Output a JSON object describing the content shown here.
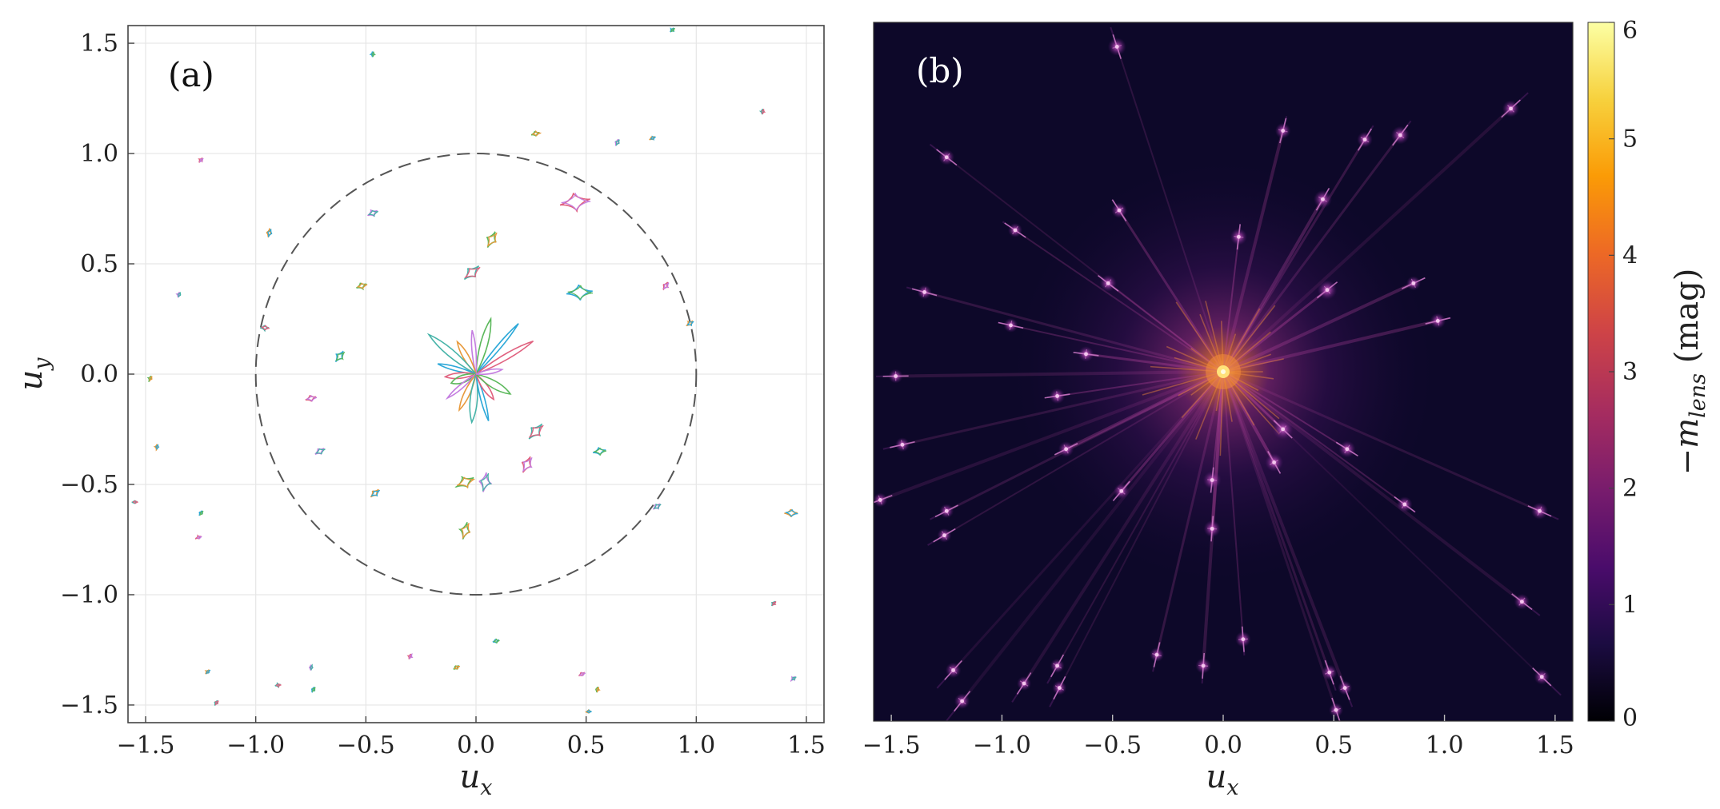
{
  "chart_data": [
    {
      "type": "scatter",
      "panel_label": "(a)",
      "xlabel": "u",
      "xlabel_sub": "x",
      "ylabel": "u",
      "ylabel_sub": "y",
      "xlim": [
        -1.58,
        1.58
      ],
      "ylim": [
        -1.58,
        1.58
      ],
      "xticks": [
        -1.5,
        -1.0,
        -0.5,
        0.0,
        0.5,
        1.0,
        1.5
      ],
      "xtick_labels": [
        "−1.5",
        "−1.0",
        "−0.5",
        "0.0",
        "0.5",
        "1.0",
        "1.5"
      ],
      "yticks": [
        -1.5,
        -1.0,
        -0.5,
        0.0,
        0.5,
        1.0,
        1.5
      ],
      "ytick_labels": [
        "−1.5",
        "−1.0",
        "−0.5",
        "0.0",
        "0.5",
        "1.0",
        "1.5"
      ],
      "grid": true,
      "reference_circle": {
        "center": [
          0,
          0
        ],
        "radius": 1.0,
        "style": "dashed"
      },
      "caustics": [
        {
          "x": -0.47,
          "y": 1.45,
          "size": 0.012
        },
        {
          "x": -1.25,
          "y": 0.97,
          "size": 0.012
        },
        {
          "x": 0.27,
          "y": 1.09,
          "size": 0.02
        },
        {
          "x": 0.64,
          "y": 1.05,
          "size": 0.016
        },
        {
          "x": 0.8,
          "y": 1.07,
          "size": 0.014
        },
        {
          "x": 1.3,
          "y": 1.19,
          "size": 0.012
        },
        {
          "x": 0.89,
          "y": 1.56,
          "size": 0.012
        },
        {
          "x": 0.45,
          "y": 0.78,
          "size": 0.07
        },
        {
          "x": 0.07,
          "y": 0.61,
          "size": 0.04
        },
        {
          "x": -0.47,
          "y": 0.73,
          "size": 0.025
        },
        {
          "x": -0.94,
          "y": 0.64,
          "size": 0.02
        },
        {
          "x": -0.02,
          "y": 0.46,
          "size": 0.045
        },
        {
          "x": 0.47,
          "y": 0.37,
          "size": 0.06
        },
        {
          "x": 0.86,
          "y": 0.4,
          "size": 0.02
        },
        {
          "x": -0.52,
          "y": 0.4,
          "size": 0.025
        },
        {
          "x": -1.35,
          "y": 0.36,
          "size": 0.012
        },
        {
          "x": 0.97,
          "y": 0.23,
          "size": 0.018
        },
        {
          "x": -0.96,
          "y": 0.21,
          "size": 0.02
        },
        {
          "x": -0.62,
          "y": 0.08,
          "size": 0.03
        },
        {
          "x": -0.75,
          "y": -0.11,
          "size": 0.025
        },
        {
          "x": -1.48,
          "y": -0.02,
          "size": 0.012
        },
        {
          "x": -0.71,
          "y": -0.35,
          "size": 0.025
        },
        {
          "x": -1.45,
          "y": -0.33,
          "size": 0.012
        },
        {
          "x": 0.27,
          "y": -0.26,
          "size": 0.045
        },
        {
          "x": 0.56,
          "y": -0.35,
          "size": 0.03
        },
        {
          "x": 0.23,
          "y": -0.41,
          "size": 0.04
        },
        {
          "x": -0.05,
          "y": -0.49,
          "size": 0.045
        },
        {
          "x": 0.04,
          "y": -0.49,
          "size": 0.045
        },
        {
          "x": -0.46,
          "y": -0.54,
          "size": 0.025
        },
        {
          "x": -1.55,
          "y": -0.58,
          "size": 0.012
        },
        {
          "x": -1.25,
          "y": -0.63,
          "size": 0.012
        },
        {
          "x": -1.26,
          "y": -0.74,
          "size": 0.012
        },
        {
          "x": -0.05,
          "y": -0.71,
          "size": 0.04
        },
        {
          "x": 0.82,
          "y": -0.6,
          "size": 0.02
        },
        {
          "x": 1.43,
          "y": -0.63,
          "size": 0.03
        },
        {
          "x": 1.35,
          "y": -1.04,
          "size": 0.012
        },
        {
          "x": 0.09,
          "y": -1.21,
          "size": 0.015
        },
        {
          "x": -0.3,
          "y": -1.28,
          "size": 0.012
        },
        {
          "x": -0.09,
          "y": -1.33,
          "size": 0.015
        },
        {
          "x": -0.75,
          "y": -1.33,
          "size": 0.012
        },
        {
          "x": -1.22,
          "y": -1.35,
          "size": 0.012
        },
        {
          "x": -0.9,
          "y": -1.41,
          "size": 0.012
        },
        {
          "x": -0.74,
          "y": -1.43,
          "size": 0.012
        },
        {
          "x": 0.48,
          "y": -1.36,
          "size": 0.015
        },
        {
          "x": 0.55,
          "y": -1.43,
          "size": 0.012
        },
        {
          "x": 1.44,
          "y": -1.38,
          "size": 0.012
        },
        {
          "x": 0.51,
          "y": -1.53,
          "size": 0.012
        },
        {
          "x": -1.18,
          "y": -1.49,
          "size": 0.012
        }
      ],
      "central_rays": [
        {
          "angle": 50,
          "length": 0.3
        },
        {
          "angle": 30,
          "length": 0.3
        },
        {
          "angle": 75,
          "length": 0.26
        },
        {
          "angle": 95,
          "length": 0.2
        },
        {
          "angle": 120,
          "length": 0.17
        },
        {
          "angle": 140,
          "length": 0.28
        },
        {
          "angle": 165,
          "length": 0.18
        },
        {
          "angle": 185,
          "length": 0.14
        },
        {
          "angle": 200,
          "length": 0.12
        },
        {
          "angle": 220,
          "length": 0.17
        },
        {
          "angle": 245,
          "length": 0.18
        },
        {
          "angle": 265,
          "length": 0.22
        },
        {
          "angle": 285,
          "length": 0.22
        },
        {
          "angle": 305,
          "length": 0.14
        },
        {
          "angle": 330,
          "length": 0.18
        },
        {
          "angle": 10,
          "length": 0.12
        }
      ]
    },
    {
      "type": "heatmap",
      "panel_label": "(b)",
      "xlabel": "u",
      "xlabel_sub": "x",
      "xlim": [
        -1.58,
        1.58
      ],
      "ylim": [
        -1.58,
        1.58
      ],
      "xticks": [
        -1.5,
        -1.0,
        -0.5,
        0.0,
        0.5,
        1.0,
        1.5
      ],
      "xtick_labels": [
        "−1.5",
        "−1.0",
        "−0.5",
        "0.0",
        "0.5",
        "1.0",
        "1.5"
      ],
      "colorbar_label_prefix": "−m",
      "colorbar_label_sub": "lens",
      "colorbar_label_suffix": " (mag)",
      "colorbar_range": [
        0,
        6
      ],
      "colorbar_ticks": [
        0,
        1,
        2,
        3,
        4,
        5,
        6
      ],
      "colorbar_tick_labels": [
        "0",
        "1",
        "2",
        "3",
        "4",
        "5",
        "6"
      ],
      "colormap": "plasma-like",
      "central_peak": {
        "x": 0.0,
        "y": 0.0,
        "value": 6
      },
      "bright_spots": [
        {
          "x": -0.48,
          "y": 1.47,
          "value": 1.5
        },
        {
          "x": 0.8,
          "y": 1.07,
          "value": 1.5
        },
        {
          "x": 1.3,
          "y": 1.19,
          "value": 1.4
        },
        {
          "x": -1.25,
          "y": 0.97,
          "value": 1.3
        },
        {
          "x": 0.64,
          "y": 1.05,
          "value": 1.3
        },
        {
          "x": 0.27,
          "y": 1.09,
          "value": 1.3
        },
        {
          "x": -0.94,
          "y": 0.64,
          "value": 1.2
        },
        {
          "x": -0.47,
          "y": 0.73,
          "value": 1.3
        },
        {
          "x": 0.45,
          "y": 0.78,
          "value": 1.5
        },
        {
          "x": 0.07,
          "y": 0.61,
          "value": 1.4
        },
        {
          "x": -1.35,
          "y": 0.36,
          "value": 1.2
        },
        {
          "x": 0.86,
          "y": 0.4,
          "value": 1.2
        },
        {
          "x": -0.52,
          "y": 0.4,
          "value": 1.4
        },
        {
          "x": 0.47,
          "y": 0.37,
          "value": 1.6
        },
        {
          "x": 0.97,
          "y": 0.23,
          "value": 1.3
        },
        {
          "x": -0.96,
          "y": 0.21,
          "value": 1.2
        },
        {
          "x": -0.62,
          "y": 0.08,
          "value": 1.3
        },
        {
          "x": -1.48,
          "y": -0.02,
          "value": 1.2
        },
        {
          "x": -0.75,
          "y": -0.11,
          "value": 1.3
        },
        {
          "x": -1.45,
          "y": -0.33,
          "value": 1.2
        },
        {
          "x": -0.71,
          "y": -0.35,
          "value": 1.3
        },
        {
          "x": 0.56,
          "y": -0.35,
          "value": 1.4
        },
        {
          "x": 0.27,
          "y": -0.26,
          "value": 1.7
        },
        {
          "x": 0.23,
          "y": -0.41,
          "value": 1.5
        },
        {
          "x": -0.05,
          "y": -0.49,
          "value": 1.5
        },
        {
          "x": -0.46,
          "y": -0.54,
          "value": 1.3
        },
        {
          "x": -1.55,
          "y": -0.58,
          "value": 1.2
        },
        {
          "x": 0.82,
          "y": -0.6,
          "value": 1.3
        },
        {
          "x": -1.25,
          "y": -0.63,
          "value": 1.2
        },
        {
          "x": -0.05,
          "y": -0.71,
          "value": 1.4
        },
        {
          "x": -1.26,
          "y": -0.74,
          "value": 1.2
        },
        {
          "x": 1.43,
          "y": -0.63,
          "value": 1.4
        },
        {
          "x": 1.35,
          "y": -1.04,
          "value": 1.3
        },
        {
          "x": 0.09,
          "y": -1.21,
          "value": 1.3
        },
        {
          "x": -0.3,
          "y": -1.28,
          "value": 1.2
        },
        {
          "x": -0.09,
          "y": -1.33,
          "value": 1.3
        },
        {
          "x": -0.75,
          "y": -1.33,
          "value": 1.2
        },
        {
          "x": -1.22,
          "y": -1.35,
          "value": 1.3
        },
        {
          "x": -0.9,
          "y": -1.41,
          "value": 1.2
        },
        {
          "x": -0.74,
          "y": -1.43,
          "value": 1.2
        },
        {
          "x": 0.48,
          "y": -1.36,
          "value": 1.3
        },
        {
          "x": 0.55,
          "y": -1.43,
          "value": 1.2
        },
        {
          "x": 1.44,
          "y": -1.38,
          "value": 1.3
        },
        {
          "x": 0.51,
          "y": -1.53,
          "value": 1.2
        },
        {
          "x": -1.18,
          "y": -1.49,
          "value": 1.3
        }
      ]
    }
  ],
  "colors": {
    "grid": "#e6e6e6",
    "axis": "#444444",
    "circle": "#555555",
    "caustic_palette": [
      "#2ca8d8",
      "#e0607e",
      "#5bb85b",
      "#c47de0",
      "#e89a3c",
      "#45b3a8"
    ],
    "heatmap_background": "#0d0829",
    "colorbar_stops": [
      "#000004",
      "#1b0c41",
      "#4a0c6b",
      "#781c6d",
      "#a52c60",
      "#cf4446",
      "#ed6925",
      "#fb9b06",
      "#f7d13d",
      "#fcffa4"
    ]
  }
}
